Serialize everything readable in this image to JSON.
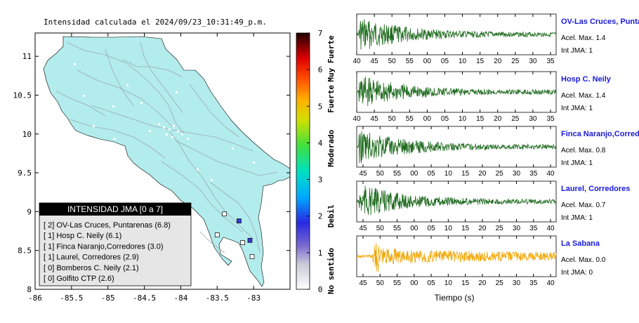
{
  "map": {
    "title": "Intensidad calculada el 2024/09/23_10:31:49_p.m.",
    "x_ticks": [
      "-86",
      "-85.5",
      "-85",
      "-84.5",
      "-84",
      "-83.5",
      "-83"
    ],
    "y_ticks": [
      "11",
      "10.5",
      "10",
      "9.5",
      "9",
      "8.5",
      "8"
    ],
    "xlim": [
      -86,
      -82.5
    ],
    "ylim": [
      8,
      11.3
    ],
    "land_color": "#b3ecec",
    "roads_color": "#9aa9b3",
    "station_markers": [
      {
        "lon": -83.2,
        "lat": 8.88,
        "color": "#3b3bd0"
      },
      {
        "lon": -83.05,
        "lat": 8.63,
        "color": "#3b3bd0"
      },
      {
        "lon": -83.4,
        "lat": 8.97,
        "color": "#ffffff"
      },
      {
        "lon": -83.5,
        "lat": 8.7,
        "color": "#ffffff"
      },
      {
        "lon": -83.15,
        "lat": 8.6,
        "color": "#ffffff"
      },
      {
        "lon": -83.02,
        "lat": 8.42,
        "color": "#ffffff"
      }
    ]
  },
  "legend": {
    "title": "INTENSIDAD JMA [0 a 7]",
    "items": [
      "[ 2] OV-Las Cruces, Puntarenas (6.8)",
      "[ 1] Hosp C. Neily (6.1)",
      "[ 1] Finca Naranjo,Corredores (3.0)",
      "[ 1] Laurel, Corredores (2.9)",
      "[ 0] Bomberos C. Neily (2.1)",
      "[ 0] Golfito CTP (2.6)"
    ]
  },
  "colorbar": {
    "ticks": [
      "0",
      "1",
      "2",
      "3",
      "4",
      "5",
      "6",
      "7"
    ],
    "labels": [
      "No sentido",
      "Debil",
      "Moderado",
      "Fuerte",
      "Muy Fuerte"
    ],
    "range": [
      0,
      7
    ]
  },
  "chart_data": {
    "type": "line",
    "xlabel": "Tiempo (s)",
    "panels": [
      {
        "name": "OV-Las Cruces, Puntar",
        "acel": "Acel. Max. 1.4",
        "jma": "Int JMA: 1",
        "color": "#1f6b1f",
        "ticks": [
          "40",
          "45",
          "50",
          "55",
          "00",
          "05",
          "10",
          "15",
          "20",
          "25",
          "30",
          "35"
        ],
        "peak": 1.4
      },
      {
        "name": "Hosp C. Neily",
        "acel": "Acel. Max. 1.4",
        "jma": "Int JMA: 1",
        "color": "#1f6b1f",
        "ticks": [
          "40",
          "45",
          "50",
          "55",
          "00",
          "05",
          "10",
          "15",
          "20",
          "25",
          "30",
          "35"
        ],
        "peak": 1.4
      },
      {
        "name": "Finca Naranjo,Corredor",
        "acel": "Acel. Max. 0.8",
        "jma": "Int JMA: 1",
        "color": "#1f6b1f",
        "ticks": [
          "45",
          "50",
          "55",
          "00",
          "05",
          "10",
          "15",
          "20",
          "25",
          "30",
          "35",
          "40"
        ],
        "peak": 0.8
      },
      {
        "name": "Laurel, Corredores",
        "acel": "Acel. Max. 0.7",
        "jma": "Int JMA: 1",
        "color": "#1f6b1f",
        "ticks": [
          "45",
          "50",
          "55",
          "00",
          "05",
          "10",
          "15",
          "20",
          "25",
          "30",
          "35",
          "40"
        ],
        "peak": 0.7
      },
      {
        "name": "La Sabana",
        "acel": "Acel. Max. 0.0",
        "jma": "Int JMA: 0",
        "color": "#f0a500",
        "ticks": [
          "45",
          "50",
          "55",
          "00",
          "05",
          "10",
          "15",
          "20",
          "25",
          "30",
          "35",
          "40"
        ],
        "peak": 0.0
      }
    ]
  }
}
